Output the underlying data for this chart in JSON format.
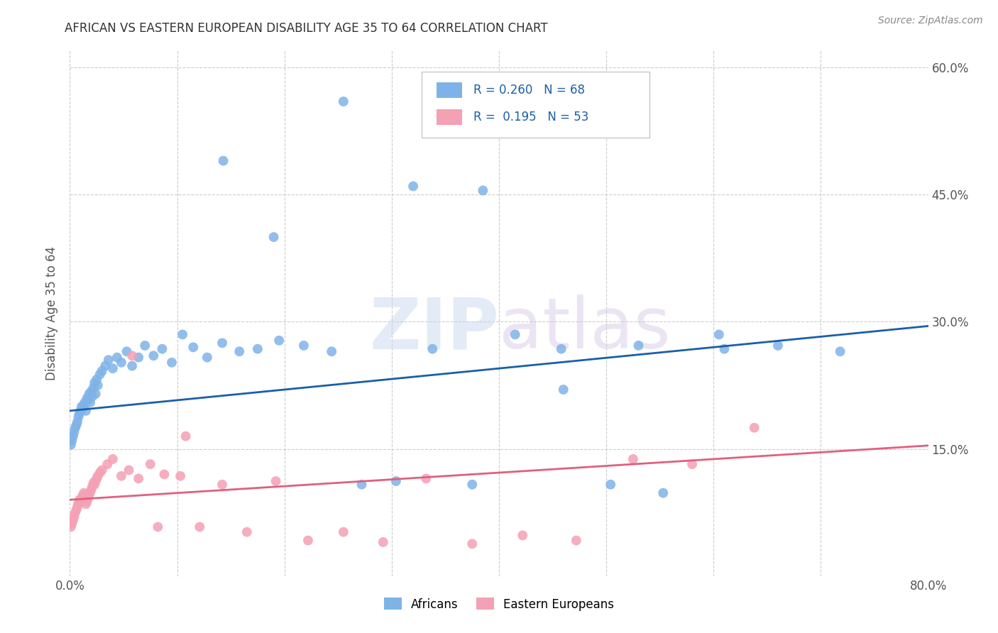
{
  "title": "AFRICAN VS EASTERN EUROPEAN DISABILITY AGE 35 TO 64 CORRELATION CHART",
  "source": "Source: ZipAtlas.com",
  "ylabel": "Disability Age 35 to 64",
  "xlim": [
    0.0,
    0.8
  ],
  "ylim": [
    0.0,
    0.62
  ],
  "x_ticks": [
    0.0,
    0.1,
    0.2,
    0.3,
    0.4,
    0.5,
    0.6,
    0.7,
    0.8
  ],
  "y_ticks": [
    0.0,
    0.15,
    0.3,
    0.45,
    0.6
  ],
  "grid_color": "#cccccc",
  "background_color": "#ffffff",
  "african_color": "#7fb3e8",
  "eastern_color": "#f4a0b5",
  "african_line_color": "#1a5fa8",
  "eastern_line_color": "#e06080",
  "watermark_zip": "ZIP",
  "watermark_atlas": "atlas",
  "af_intercept": 0.195,
  "af_slope": 0.125,
  "ea_intercept": 0.09,
  "ea_slope": 0.08,
  "african_x": [
    0.001,
    0.002,
    0.003,
    0.004,
    0.005,
    0.006,
    0.007,
    0.008,
    0.009,
    0.01,
    0.011,
    0.012,
    0.013,
    0.014,
    0.015,
    0.016,
    0.017,
    0.018,
    0.019,
    0.02,
    0.021,
    0.022,
    0.023,
    0.024,
    0.025,
    0.026,
    0.028,
    0.03,
    0.033,
    0.036,
    0.04,
    0.044,
    0.048,
    0.053,
    0.058,
    0.064,
    0.07,
    0.078,
    0.086,
    0.095,
    0.105,
    0.115,
    0.128,
    0.142,
    0.158,
    0.175,
    0.195,
    0.218,
    0.244,
    0.272,
    0.304,
    0.338,
    0.375,
    0.415,
    0.458,
    0.504,
    0.553,
    0.605,
    0.66,
    0.718,
    0.143,
    0.19,
    0.255,
    0.32,
    0.385,
    0.46,
    0.53,
    0.61
  ],
  "african_y": [
    0.155,
    0.16,
    0.165,
    0.17,
    0.175,
    0.178,
    0.182,
    0.188,
    0.192,
    0.195,
    0.2,
    0.198,
    0.202,
    0.205,
    0.195,
    0.21,
    0.208,
    0.215,
    0.205,
    0.218,
    0.212,
    0.222,
    0.228,
    0.215,
    0.232,
    0.225,
    0.238,
    0.242,
    0.248,
    0.255,
    0.245,
    0.258,
    0.252,
    0.265,
    0.248,
    0.258,
    0.272,
    0.26,
    0.268,
    0.252,
    0.285,
    0.27,
    0.258,
    0.275,
    0.265,
    0.268,
    0.278,
    0.272,
    0.265,
    0.108,
    0.112,
    0.268,
    0.108,
    0.285,
    0.268,
    0.108,
    0.098,
    0.285,
    0.272,
    0.265,
    0.49,
    0.4,
    0.56,
    0.46,
    0.455,
    0.22,
    0.272,
    0.268
  ],
  "eastern_x": [
    0.001,
    0.002,
    0.003,
    0.004,
    0.005,
    0.006,
    0.007,
    0.008,
    0.009,
    0.01,
    0.011,
    0.012,
    0.013,
    0.014,
    0.015,
    0.016,
    0.017,
    0.018,
    0.019,
    0.02,
    0.021,
    0.022,
    0.023,
    0.024,
    0.025,
    0.026,
    0.028,
    0.03,
    0.035,
    0.04,
    0.048,
    0.055,
    0.064,
    0.075,
    0.088,
    0.103,
    0.121,
    0.142,
    0.165,
    0.192,
    0.222,
    0.255,
    0.292,
    0.332,
    0.375,
    0.422,
    0.472,
    0.525,
    0.58,
    0.638,
    0.058,
    0.082,
    0.108
  ],
  "eastern_y": [
    0.058,
    0.062,
    0.066,
    0.07,
    0.075,
    0.078,
    0.082,
    0.086,
    0.09,
    0.088,
    0.092,
    0.095,
    0.098,
    0.092,
    0.085,
    0.088,
    0.092,
    0.096,
    0.099,
    0.102,
    0.106,
    0.11,
    0.108,
    0.112,
    0.115,
    0.118,
    0.122,
    0.125,
    0.132,
    0.138,
    0.118,
    0.125,
    0.115,
    0.132,
    0.12,
    0.118,
    0.058,
    0.108,
    0.052,
    0.112,
    0.042,
    0.052,
    0.04,
    0.115,
    0.038,
    0.048,
    0.042,
    0.138,
    0.132,
    0.175,
    0.26,
    0.058,
    0.165
  ]
}
